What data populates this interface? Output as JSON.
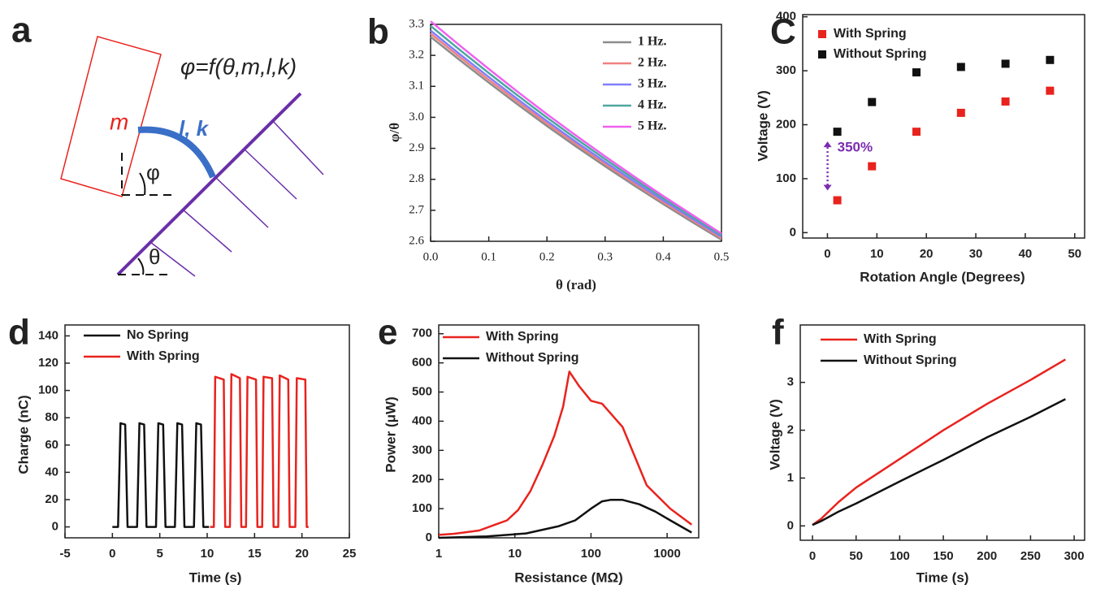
{
  "diagram": {
    "panel": "a",
    "formula": "φ=f(θ,m,l,k)",
    "mass": "m",
    "spring": "l, k",
    "phi": "φ",
    "theta": "θ"
  },
  "chart_data": [
    {
      "type": "line",
      "panel": "b",
      "xlabel": "θ (rad)",
      "ylabel": "φ/θ",
      "x": [
        0,
        0.05,
        0.1,
        0.15,
        0.2,
        0.25,
        0.3,
        0.35,
        0.4,
        0.45,
        0.5
      ],
      "series": [
        {
          "name": "1 Hz.",
          "color": "#8c8c8c",
          "values": [
            3.26,
            3.185,
            3.112,
            3.041,
            2.972,
            2.906,
            2.842,
            2.78,
            2.72,
            2.662,
            2.605
          ]
        },
        {
          "name": "2 Hz.",
          "color": "#f08080",
          "values": [
            3.27,
            3.195,
            3.121,
            3.05,
            2.98,
            2.914,
            2.849,
            2.787,
            2.726,
            2.668,
            2.61
          ]
        },
        {
          "name": "3 Hz.",
          "color": "#7f7fff",
          "values": [
            3.28,
            3.204,
            3.13,
            3.058,
            2.988,
            2.921,
            2.856,
            2.793,
            2.732,
            2.673,
            2.615
          ]
        },
        {
          "name": "4 Hz.",
          "color": "#4fa6a0",
          "values": [
            3.295,
            3.218,
            3.143,
            3.07,
            2.999,
            2.931,
            2.865,
            2.801,
            2.739,
            2.679,
            2.62
          ]
        },
        {
          "name": "5 Hz.",
          "color": "#f060f0",
          "values": [
            3.31,
            3.232,
            3.156,
            3.082,
            3.01,
            2.941,
            2.874,
            2.809,
            2.746,
            2.685,
            2.625
          ]
        }
      ],
      "xlim": [
        0,
        0.5
      ],
      "ylim": [
        2.6,
        3.3
      ],
      "xticks": [
        {
          "value": 0,
          "label": "0.0"
        },
        0.1,
        0.2,
        0.3,
        0.4,
        0.5
      ],
      "yticks": [
        2.6,
        2.7,
        2.8,
        2.9,
        {
          "value": 3,
          "label": "3.0"
        },
        3.1,
        3.2,
        3.3
      ],
      "legend": "upper-right"
    },
    {
      "type": "scatter",
      "panel": "C",
      "xlabel": "Rotation Angle (Degrees)",
      "ylabel": "Voltage (V)",
      "x": [
        2,
        9,
        18,
        27,
        36,
        45
      ],
      "series": [
        {
          "name": "With Spring",
          "color": "#e8231e",
          "values": [
            60,
            123,
            187,
            222,
            243,
            263
          ]
        },
        {
          "name": "Without Spring",
          "color": "#111111",
          "values": [
            187,
            242,
            297,
            307,
            313,
            320
          ]
        }
      ],
      "annotation": "350%",
      "annotation_color": "#7a2db0",
      "xlim": [
        -5,
        52
      ],
      "ylim": [
        -10,
        404
      ],
      "xticks": [
        0,
        10,
        20,
        30,
        40,
        50
      ],
      "yticks": [
        0,
        100,
        200,
        300,
        400
      ],
      "legend": "upper-left"
    },
    {
      "type": "line",
      "panel": "d",
      "xlabel": "Time (s)",
      "ylabel": "Charge (nC)",
      "series": [
        {
          "name": "No Spring",
          "color": "#111111",
          "x": [
            0,
            0.6,
            0.85,
            1.35,
            1.6,
            2.6,
            2.85,
            3.35,
            3.6,
            4.6,
            4.85,
            5.35,
            5.6,
            6.6,
            6.85,
            7.35,
            7.6,
            8.6,
            8.85,
            9.35,
            9.6,
            10.2
          ],
          "values": [
            0,
            0,
            76,
            75,
            0,
            0,
            76,
            75,
            0,
            0,
            76,
            75,
            0,
            0,
            76,
            75,
            0,
            0,
            76,
            75,
            0,
            0
          ]
        },
        {
          "name": "With Spring",
          "color": "#e8231e",
          "x": [
            10.3,
            10.7,
            10.85,
            11.75,
            11.9,
            12.4,
            12.55,
            13.45,
            13.6,
            14.1,
            14.25,
            15.15,
            15.3,
            15.8,
            15.95,
            16.85,
            17.0,
            17.5,
            17.65,
            18.55,
            18.7,
            19.3,
            19.45,
            20.35,
            20.5,
            20.7
          ],
          "values": [
            0,
            0,
            110,
            108,
            0,
            0,
            112,
            109,
            0,
            0,
            110,
            108,
            0,
            0,
            110,
            109,
            0,
            0,
            111,
            108,
            0,
            0,
            109,
            108,
            0,
            0
          ]
        }
      ],
      "xlim": [
        -5,
        25
      ],
      "ylim": [
        -8,
        148
      ],
      "xticks": [
        -5,
        0,
        5,
        10,
        15,
        20,
        25
      ],
      "yticks": [
        0,
        20,
        40,
        60,
        80,
        100,
        120,
        140
      ],
      "legend": "upper-left"
    },
    {
      "type": "line",
      "panel": "e",
      "xlabel": "Resistance (MΩ)",
      "ylabel": "Power (μW)",
      "xscale": "log",
      "series": [
        {
          "name": "With Spring",
          "color": "#e8231e",
          "x": [
            1,
            1.6,
            3.4,
            5.5,
            7.9,
            11,
            16,
            23,
            33,
            43,
            52,
            70,
            100,
            140,
            260,
            540,
            1100,
            2100
          ],
          "values": [
            10,
            14,
            25,
            45,
            60,
            95,
            160,
            250,
            350,
            450,
            570,
            520,
            470,
            460,
            380,
            180,
            100,
            45
          ]
        },
        {
          "name": "Without Spring",
          "color": "#111111",
          "x": [
            1,
            4.3,
            14,
            38,
            62,
            100,
            140,
            180,
            260,
            430,
            700,
            1100,
            2100
          ],
          "values": [
            0,
            5,
            15,
            40,
            60,
            100,
            125,
            130,
            130,
            115,
            90,
            60,
            18
          ]
        }
      ],
      "xlim": [
        1,
        2600
      ],
      "ylim": [
        0,
        730
      ],
      "xticks": [
        1,
        10,
        100,
        1000
      ],
      "yticks": [
        0,
        100,
        200,
        300,
        400,
        500,
        600,
        700
      ],
      "legend": "upper-left"
    },
    {
      "type": "line",
      "panel": "f",
      "xlabel": "Time (s)",
      "ylabel": "Voltage (V)",
      "x": [
        0,
        10,
        30,
        50,
        100,
        150,
        200,
        250,
        290
      ],
      "series": [
        {
          "name": "With Spring",
          "color": "#e8231e",
          "values": [
            0.02,
            0.15,
            0.5,
            0.8,
            1.4,
            2.0,
            2.55,
            3.05,
            3.48
          ]
        },
        {
          "name": "Without Spring",
          "color": "#111111",
          "values": [
            0.02,
            0.1,
            0.3,
            0.47,
            0.93,
            1.38,
            1.85,
            2.28,
            2.65
          ]
        }
      ],
      "xlim": [
        -14,
        312
      ],
      "ylim": [
        -0.3,
        4.2
      ],
      "xticks": [
        0,
        50,
        100,
        150,
        200,
        250,
        300
      ],
      "yticks": [
        0,
        1,
        2,
        3
      ],
      "legend": "upper-left"
    }
  ]
}
